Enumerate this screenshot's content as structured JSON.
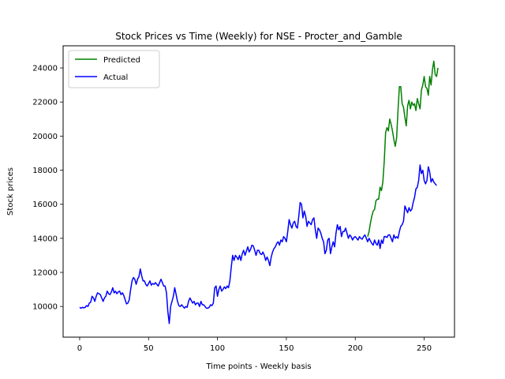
{
  "chart_data": {
    "type": "line",
    "title": "Stock Prices vs Time (Weekly) for NSE - Procter_and_Gamble",
    "xlabel": "Time points - Weekly basis",
    "ylabel": "Stock prices",
    "xlim": [
      -12,
      272
    ],
    "ylim": [
      8200,
      25300
    ],
    "xticks": [
      0,
      50,
      100,
      150,
      200,
      250
    ],
    "yticks": [
      10000,
      12000,
      14000,
      16000,
      18000,
      20000,
      22000,
      24000
    ],
    "legend": "top-left",
    "grid": false,
    "series": [
      {
        "name": "Predicted",
        "color": "#008000",
        "points": [
          [
            209,
            14100
          ],
          [
            210,
            14400
          ],
          [
            211,
            14900
          ],
          [
            212,
            15300
          ],
          [
            213,
            15600
          ],
          [
            214,
            15700
          ],
          [
            215,
            16200
          ],
          [
            216,
            16300
          ],
          [
            217,
            16300
          ],
          [
            218,
            17000
          ],
          [
            219,
            16800
          ],
          [
            220,
            17300
          ],
          [
            221,
            18500
          ],
          [
            222,
            20200
          ],
          [
            223,
            20500
          ],
          [
            224,
            20300
          ],
          [
            225,
            21000
          ],
          [
            226,
            20700
          ],
          [
            227,
            20300
          ],
          [
            228,
            19800
          ],
          [
            229,
            19400
          ],
          [
            230,
            19900
          ],
          [
            231,
            21500
          ],
          [
            232,
            22900
          ],
          [
            233,
            22900
          ],
          [
            234,
            21900
          ],
          [
            235,
            21700
          ],
          [
            236,
            21100
          ],
          [
            237,
            20600
          ],
          [
            238,
            21800
          ],
          [
            239,
            22100
          ],
          [
            240,
            21600
          ],
          [
            241,
            22000
          ],
          [
            242,
            21800
          ],
          [
            243,
            21900
          ],
          [
            244,
            21500
          ],
          [
            245,
            22200
          ],
          [
            246,
            21900
          ],
          [
            247,
            21600
          ],
          [
            248,
            22700
          ],
          [
            249,
            23000
          ],
          [
            250,
            23500
          ],
          [
            251,
            22900
          ],
          [
            252,
            22800
          ],
          [
            253,
            22400
          ],
          [
            254,
            23500
          ],
          [
            255,
            23000
          ],
          [
            256,
            23900
          ],
          [
            257,
            24400
          ],
          [
            258,
            23600
          ],
          [
            259,
            23500
          ],
          [
            260,
            24000
          ]
        ]
      },
      {
        "name": "Actual",
        "color": "#0000ff",
        "points": [
          [
            0,
            9950
          ],
          [
            1,
            9900
          ],
          [
            2,
            9950
          ],
          [
            3,
            9920
          ],
          [
            4,
            9950
          ],
          [
            5,
            10050
          ],
          [
            6,
            10000
          ],
          [
            7,
            10200
          ],
          [
            8,
            10250
          ],
          [
            9,
            10600
          ],
          [
            10,
            10500
          ],
          [
            11,
            10300
          ],
          [
            12,
            10600
          ],
          [
            13,
            10800
          ],
          [
            14,
            10750
          ],
          [
            15,
            10700
          ],
          [
            16,
            10500
          ],
          [
            17,
            10300
          ],
          [
            18,
            10500
          ],
          [
            19,
            10600
          ],
          [
            20,
            10900
          ],
          [
            21,
            10750
          ],
          [
            22,
            10700
          ],
          [
            23,
            10850
          ],
          [
            24,
            11100
          ],
          [
            25,
            10800
          ],
          [
            26,
            10900
          ],
          [
            27,
            10750
          ],
          [
            28,
            10850
          ],
          [
            29,
            10900
          ],
          [
            30,
            10700
          ],
          [
            31,
            10800
          ],
          [
            32,
            10650
          ],
          [
            33,
            10400
          ],
          [
            34,
            10150
          ],
          [
            35,
            10200
          ],
          [
            36,
            10400
          ],
          [
            37,
            11000
          ],
          [
            38,
            11500
          ],
          [
            39,
            11700
          ],
          [
            40,
            11600
          ],
          [
            41,
            11300
          ],
          [
            42,
            11600
          ],
          [
            43,
            11750
          ],
          [
            44,
            12200
          ],
          [
            45,
            11800
          ],
          [
            46,
            11500
          ],
          [
            47,
            11500
          ],
          [
            48,
            11300
          ],
          [
            49,
            11200
          ],
          [
            50,
            11350
          ],
          [
            51,
            11500
          ],
          [
            52,
            11250
          ],
          [
            53,
            11350
          ],
          [
            54,
            11300
          ],
          [
            55,
            11400
          ],
          [
            56,
            11300
          ],
          [
            57,
            11200
          ],
          [
            58,
            11400
          ],
          [
            59,
            11600
          ],
          [
            60,
            11400
          ],
          [
            61,
            11200
          ],
          [
            62,
            11200
          ],
          [
            63,
            10800
          ],
          [
            64,
            9700
          ],
          [
            65,
            9000
          ],
          [
            66,
            10000
          ],
          [
            67,
            10300
          ],
          [
            68,
            10600
          ],
          [
            69,
            11100
          ],
          [
            70,
            10700
          ],
          [
            71,
            10300
          ],
          [
            72,
            10050
          ],
          [
            73,
            10000
          ],
          [
            74,
            10100
          ],
          [
            75,
            10000
          ],
          [
            76,
            9900
          ],
          [
            77,
            10000
          ],
          [
            78,
            9950
          ],
          [
            79,
            10300
          ],
          [
            80,
            10500
          ],
          [
            81,
            10350
          ],
          [
            82,
            10200
          ],
          [
            83,
            10300
          ],
          [
            84,
            10100
          ],
          [
            85,
            10200
          ],
          [
            86,
            10200
          ],
          [
            87,
            10000
          ],
          [
            88,
            10300
          ],
          [
            89,
            10100
          ],
          [
            90,
            10100
          ],
          [
            91,
            10000
          ],
          [
            92,
            9900
          ],
          [
            93,
            9900
          ],
          [
            94,
            9950
          ],
          [
            95,
            10100
          ],
          [
            96,
            10050
          ],
          [
            97,
            10200
          ],
          [
            98,
            11100
          ],
          [
            99,
            11200
          ],
          [
            100,
            10600
          ],
          [
            101,
            11000
          ],
          [
            102,
            11200
          ],
          [
            103,
            10900
          ],
          [
            104,
            11000
          ],
          [
            105,
            11150
          ],
          [
            106,
            11050
          ],
          [
            107,
            11200
          ],
          [
            108,
            11100
          ],
          [
            109,
            11500
          ],
          [
            110,
            12300
          ],
          [
            111,
            13000
          ],
          [
            112,
            12700
          ],
          [
            113,
            13000
          ],
          [
            114,
            12900
          ],
          [
            115,
            12750
          ],
          [
            116,
            13000
          ],
          [
            117,
            12700
          ],
          [
            118,
            13100
          ],
          [
            119,
            13300
          ],
          [
            120,
            13000
          ],
          [
            121,
            13250
          ],
          [
            122,
            13500
          ],
          [
            123,
            13200
          ],
          [
            124,
            13350
          ],
          [
            125,
            13600
          ],
          [
            126,
            13550
          ],
          [
            127,
            13300
          ],
          [
            128,
            13000
          ],
          [
            129,
            13300
          ],
          [
            130,
            13300
          ],
          [
            131,
            13100
          ],
          [
            132,
            13050
          ],
          [
            133,
            13200
          ],
          [
            134,
            13000
          ],
          [
            135,
            12700
          ],
          [
            136,
            12900
          ],
          [
            137,
            12700
          ],
          [
            138,
            12400
          ],
          [
            139,
            12900
          ],
          [
            140,
            13200
          ],
          [
            141,
            13400
          ],
          [
            142,
            13500
          ],
          [
            143,
            13700
          ],
          [
            144,
            13800
          ],
          [
            145,
            13600
          ],
          [
            146,
            13900
          ],
          [
            147,
            13800
          ],
          [
            148,
            14100
          ],
          [
            149,
            14000
          ],
          [
            150,
            13800
          ],
          [
            151,
            14400
          ],
          [
            152,
            15100
          ],
          [
            153,
            14800
          ],
          [
            154,
            14600
          ],
          [
            155,
            14900
          ],
          [
            156,
            15000
          ],
          [
            157,
            14700
          ],
          [
            158,
            14600
          ],
          [
            159,
            15300
          ],
          [
            160,
            16100
          ],
          [
            161,
            16000
          ],
          [
            162,
            15200
          ],
          [
            163,
            15600
          ],
          [
            164,
            15300
          ],
          [
            165,
            14700
          ],
          [
            166,
            15000
          ],
          [
            167,
            14900
          ],
          [
            168,
            14800
          ],
          [
            169,
            15100
          ],
          [
            170,
            15200
          ],
          [
            171,
            14500
          ],
          [
            172,
            14000
          ],
          [
            173,
            14600
          ],
          [
            174,
            14500
          ],
          [
            175,
            14300
          ],
          [
            176,
            14000
          ],
          [
            177,
            13800
          ],
          [
            178,
            13100
          ],
          [
            179,
            13300
          ],
          [
            180,
            13900
          ],
          [
            181,
            14000
          ],
          [
            182,
            13100
          ],
          [
            183,
            13500
          ],
          [
            184,
            13800
          ],
          [
            185,
            13500
          ],
          [
            186,
            14300
          ],
          [
            187,
            14800
          ],
          [
            188,
            14500
          ],
          [
            189,
            14700
          ],
          [
            190,
            14100
          ],
          [
            191,
            14400
          ],
          [
            192,
            14400
          ],
          [
            193,
            14600
          ],
          [
            194,
            14300
          ],
          [
            195,
            14000
          ],
          [
            196,
            14200
          ],
          [
            197,
            14100
          ],
          [
            198,
            13900
          ],
          [
            199,
            14050
          ],
          [
            200,
            14100
          ],
          [
            201,
            14000
          ],
          [
            202,
            13900
          ],
          [
            203,
            14100
          ],
          [
            204,
            14000
          ],
          [
            205,
            13950
          ],
          [
            206,
            14100
          ],
          [
            207,
            14200
          ],
          [
            208,
            14000
          ],
          [
            209,
            13800
          ],
          [
            210,
            14000
          ],
          [
            211,
            13850
          ],
          [
            212,
            13700
          ],
          [
            213,
            13600
          ],
          [
            214,
            13900
          ],
          [
            215,
            13700
          ],
          [
            216,
            13600
          ],
          [
            217,
            13900
          ],
          [
            218,
            13400
          ],
          [
            219,
            13900
          ],
          [
            220,
            13700
          ],
          [
            221,
            14100
          ],
          [
            222,
            14100
          ],
          [
            223,
            14050
          ],
          [
            224,
            14200
          ],
          [
            225,
            14200
          ],
          [
            226,
            14000
          ],
          [
            227,
            13800
          ],
          [
            228,
            14200
          ],
          [
            229,
            14000
          ],
          [
            230,
            14100
          ],
          [
            231,
            14000
          ],
          [
            232,
            14400
          ],
          [
            233,
            14700
          ],
          [
            234,
            14800
          ],
          [
            235,
            15000
          ],
          [
            236,
            15900
          ],
          [
            237,
            15700
          ],
          [
            238,
            15500
          ],
          [
            239,
            15800
          ],
          [
            240,
            15600
          ],
          [
            241,
            15700
          ],
          [
            242,
            16100
          ],
          [
            243,
            16400
          ],
          [
            244,
            16900
          ],
          [
            245,
            17000
          ],
          [
            246,
            17400
          ],
          [
            247,
            18300
          ],
          [
            248,
            17800
          ],
          [
            249,
            18000
          ],
          [
            250,
            17400
          ],
          [
            251,
            17200
          ],
          [
            252,
            17400
          ],
          [
            253,
            18200
          ],
          [
            254,
            17900
          ],
          [
            255,
            17300
          ],
          [
            256,
            17500
          ],
          [
            257,
            17300
          ],
          [
            258,
            17200
          ],
          [
            259,
            17100
          ]
        ]
      }
    ]
  }
}
